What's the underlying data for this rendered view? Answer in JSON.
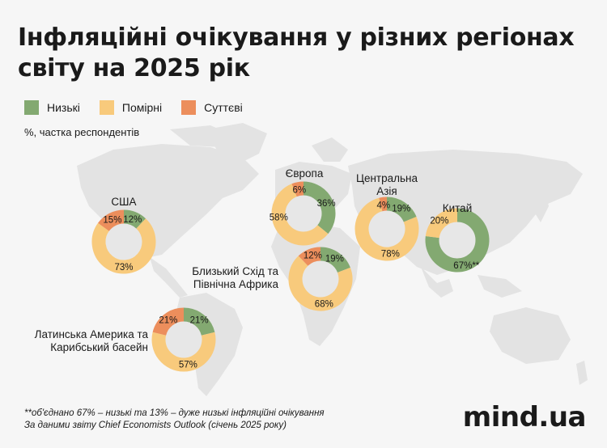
{
  "title": {
    "line1": "Інфляційні очікування у різних регіонах",
    "line2": "світу на 2025 рік"
  },
  "legend": [
    {
      "label": "Низькі",
      "color": "#83a971"
    },
    {
      "label": "Помірні",
      "color": "#f8ca7c"
    },
    {
      "label": "Суттєві",
      "color": "#ec8e5c"
    }
  ],
  "unit_label": "%, частка респондентів",
  "chart_data": {
    "type": "donut",
    "series_names": [
      "Низькі",
      "Помірні",
      "Суттєві"
    ],
    "colors": {
      "Низькі": "#83a971",
      "Помірні": "#f8ca7c",
      "Суттєві": "#ec8e5c"
    },
    "regions": [
      {
        "name": "США",
        "values": {
          "Низькі": 12,
          "Помірні": 73,
          "Суттєві": 15
        },
        "labels": {
          "Низькі": "12%",
          "Помірні": "73%",
          "Суттєві": "15%"
        }
      },
      {
        "name": "Європа",
        "values": {
          "Низькі": 36,
          "Помірні": 58,
          "Суттєві": 6
        },
        "labels": {
          "Низькі": "36%",
          "Помірні": "58%",
          "Суттєві": "6%"
        }
      },
      {
        "name": "Центральна Азія",
        "values": {
          "Низькі": 19,
          "Помірні": 78,
          "Суттєві": 4
        },
        "labels": {
          "Низькі": "19%",
          "Помірні": "78%",
          "Суттєві": "4%"
        }
      },
      {
        "name": "Китай",
        "values": {
          "Низькі": 67,
          "Помірні": 20,
          "Суттєві": 0
        },
        "labels": {
          "Низькі": "67%**",
          "Помірні": "20%"
        }
      },
      {
        "name": "Близький Схід та Північна Африка",
        "values": {
          "Низькі": 19,
          "Помірні": 68,
          "Суттєві": 12
        },
        "labels": {
          "Низькі": "19%",
          "Помірні": "68%",
          "Суттєві": "12%"
        }
      },
      {
        "name": "Латинська Америка та Карибський басейн",
        "values": {
          "Низькі": 21,
          "Помірні": 57,
          "Суттєві": 21
        },
        "labels": {
          "Низькі": "21%",
          "Помірні": "57%",
          "Суттєві": "21%"
        }
      }
    ]
  },
  "region_label_lines": {
    "США": [
      "США"
    ],
    "Європа": [
      "Європа"
    ],
    "Центральна Азія": [
      "Центральна",
      "Азія"
    ],
    "Китай": [
      "Китай"
    ],
    "Близький Схід та Північна Африка": [
      "Близький Схід та",
      "Північна Африка"
    ],
    "Латинська Америка та Карибський басейн": [
      "Латинська Америка та",
      "Карибський басейн"
    ]
  },
  "footnote": {
    "line1": "**об'єднано 67% – низькі та 13% – дуже низькі інфляційні очікування",
    "line2": "За даними звіту Chief Economists Outlook (січень 2025 року)"
  },
  "logo": "mind.ua"
}
